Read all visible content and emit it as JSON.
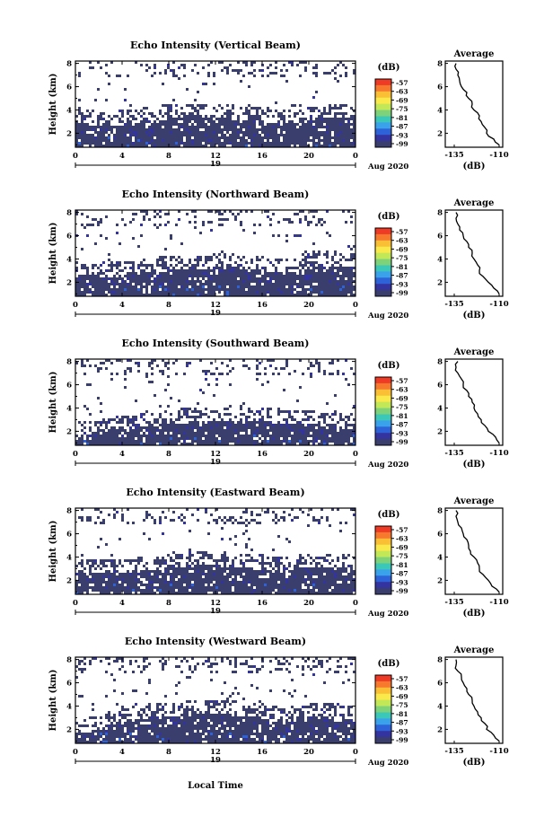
{
  "colorbar": {
    "unit": "(dB)",
    "ticks": [
      "-57",
      "-63",
      "-69",
      "-75",
      "-81",
      "-87",
      "-93",
      "-99"
    ],
    "colors": [
      "#ef3a26",
      "#f6792d",
      "#fbbf36",
      "#fae94a",
      "#c3e857",
      "#7ed37a",
      "#3cc8b9",
      "#3aa2ea",
      "#2e62d9",
      "#3434a0",
      "#393e6c"
    ],
    "range": [
      -99,
      -57
    ]
  },
  "x_axis": {
    "ticks": [
      "0",
      "4",
      "8",
      "12",
      "16",
      "20",
      "0"
    ],
    "day_label": "19",
    "date_label": "Aug 2020",
    "xlabel": "Local Time"
  },
  "y_axis": {
    "ylabel": "Height (km)",
    "ticks": [
      "2",
      "4",
      "6",
      "8"
    ]
  },
  "average": {
    "title": "Average",
    "xlabel": "(dB)",
    "x_ticks": [
      "-135",
      "-110"
    ],
    "y_ticks": [
      "2",
      "4",
      "6",
      "8"
    ]
  },
  "chart_data": [
    {
      "type": "heatmap",
      "title": "Echo Intensity (Vertical Beam)",
      "xlabel": "Local Time",
      "ylabel": "Height (km)",
      "xlim": [
        0,
        24
      ],
      "ylim": [
        0.8,
        8.2
      ],
      "dense_top_km": [
        3.1,
        3.0,
        2.9,
        2.9,
        3.0,
        3.2,
        3.3,
        3.4,
        3.5,
        3.5,
        3.6,
        3.6,
        3.5,
        3.5,
        3.4,
        3.3,
        3.2,
        3.2,
        3.1,
        3.1,
        3.3,
        3.5,
        3.5,
        3.6,
        3.6
      ],
      "average_profile": {
        "height_km": [
          1.0,
          1.5,
          2.0,
          2.5,
          3.0,
          3.5,
          4.0,
          4.5,
          5.0,
          5.5,
          6.0,
          6.5,
          7.0,
          7.5,
          8.0
        ],
        "db": [
          -110,
          -113,
          -117,
          -118,
          -120,
          -121,
          -124,
          -125,
          -127,
          -128,
          -131,
          -132,
          -133,
          -134,
          -134
        ]
      }
    },
    {
      "type": "heatmap",
      "title": "Echo Intensity (Northward Beam)",
      "xlabel": "Local Time",
      "ylabel": "Height (km)",
      "xlim": [
        0,
        24
      ],
      "ylim": [
        0.8,
        8.2
      ],
      "dense_top_km": [
        2.9,
        2.9,
        2.8,
        2.8,
        2.9,
        3.0,
        3.1,
        3.2,
        3.3,
        3.4,
        3.4,
        3.4,
        3.5,
        3.5,
        3.4,
        3.3,
        3.2,
        3.1,
        3.1,
        3.0,
        3.6,
        3.8,
        3.6,
        3.6,
        3.7
      ],
      "average_profile": {
        "height_km": [
          1.0,
          1.5,
          2.0,
          2.5,
          3.0,
          3.5,
          4.0,
          4.5,
          5.0,
          5.5,
          6.0,
          6.5,
          7.0,
          7.5,
          8.0
        ],
        "db": [
          -110,
          -113,
          -116,
          -119,
          -121,
          -122,
          -124,
          -125,
          -127,
          -128,
          -130,
          -132,
          -133,
          -134,
          -134
        ]
      }
    },
    {
      "type": "heatmap",
      "title": "Echo Intensity (Southward Beam)",
      "xlabel": "Local Time",
      "ylabel": "Height (km)",
      "xlim": [
        0,
        24
      ],
      "ylim": [
        0.8,
        8.2
      ],
      "dense_top_km": [
        1.8,
        1.9,
        2.1,
        2.3,
        2.5,
        2.6,
        2.7,
        2.8,
        2.9,
        3.0,
        3.1,
        3.1,
        3.2,
        3.2,
        3.2,
        3.1,
        3.1,
        3.0,
        2.9,
        2.9,
        2.8,
        2.8,
        2.7,
        2.6,
        2.5
      ],
      "average_profile": {
        "height_km": [
          1.0,
          1.5,
          2.0,
          2.5,
          3.0,
          3.5,
          4.0,
          4.5,
          5.0,
          5.5,
          6.0,
          6.5,
          7.0,
          7.5,
          8.0
        ],
        "db": [
          -110,
          -112,
          -116,
          -118,
          -120,
          -122,
          -124,
          -125,
          -127,
          -128,
          -130,
          -131,
          -133,
          -134,
          -133
        ]
      }
    },
    {
      "type": "heatmap",
      "title": "Echo Intensity (Eastward Beam)",
      "xlabel": "Local Time",
      "ylabel": "Height (km)",
      "xlim": [
        0,
        24
      ],
      "ylim": [
        0.8,
        8.2
      ],
      "dense_top_km": [
        2.8,
        2.8,
        2.9,
        2.9,
        2.9,
        3.0,
        3.1,
        3.2,
        3.3,
        3.4,
        3.5,
        3.5,
        3.5,
        3.4,
        3.4,
        3.3,
        3.2,
        3.1,
        3.0,
        3.2,
        3.4,
        3.4,
        3.3,
        3.2,
        3.2
      ],
      "average_profile": {
        "height_km": [
          1.0,
          1.5,
          2.0,
          2.5,
          3.0,
          3.5,
          4.0,
          4.5,
          5.0,
          5.5,
          6.0,
          6.5,
          7.0,
          7.5,
          8.0
        ],
        "db": [
          -110,
          -114,
          -116,
          -119,
          -121,
          -122,
          -124,
          -126,
          -127,
          -128,
          -130,
          -131,
          -133,
          -134,
          -134
        ]
      }
    },
    {
      "type": "heatmap",
      "title": "Echo Intensity (Westward Beam)",
      "xlabel": "Local Time",
      "ylabel": "Height (km)",
      "xlim": [
        0,
        24
      ],
      "ylim": [
        0.8,
        8.2
      ],
      "dense_top_km": [
        1.9,
        2.0,
        2.3,
        2.6,
        2.8,
        3.0,
        3.2,
        3.3,
        3.4,
        3.4,
        3.5,
        3.5,
        3.5,
        3.5,
        3.4,
        3.3,
        3.2,
        3.0,
        2.9,
        3.1,
        3.3,
        3.3,
        3.2,
        3.1,
        3.0
      ],
      "average_profile": {
        "height_km": [
          1.0,
          1.5,
          2.0,
          2.5,
          3.0,
          3.5,
          4.0,
          4.5,
          5.0,
          5.5,
          6.0,
          6.5,
          7.0,
          7.5,
          8.0
        ],
        "db": [
          -110,
          -113,
          -117,
          -118,
          -120,
          -122,
          -124,
          -125,
          -127,
          -128,
          -130,
          -131,
          -133,
          -134,
          -134
        ]
      }
    }
  ]
}
